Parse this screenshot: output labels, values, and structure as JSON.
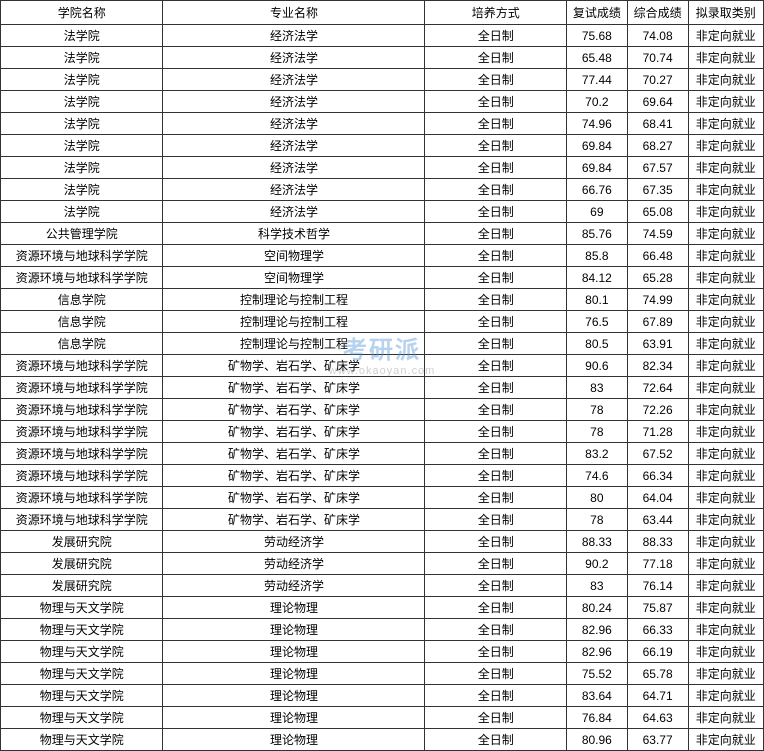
{
  "table": {
    "columns": [
      {
        "key": "school",
        "label": "学院名称",
        "class": "col-school"
      },
      {
        "key": "major",
        "label": "专业名称",
        "class": "col-major"
      },
      {
        "key": "mode",
        "label": "培养方式",
        "class": "col-mode"
      },
      {
        "key": "score1",
        "label": "复试成绩",
        "class": "col-score1"
      },
      {
        "key": "score2",
        "label": "综合成绩",
        "class": "col-score2"
      },
      {
        "key": "type",
        "label": "拟录取类别",
        "class": "col-type"
      }
    ],
    "rows": [
      [
        "法学院",
        "经济法学",
        "全日制",
        "75.68",
        "74.08",
        "非定向就业"
      ],
      [
        "法学院",
        "经济法学",
        "全日制",
        "65.48",
        "70.74",
        "非定向就业"
      ],
      [
        "法学院",
        "经济法学",
        "全日制",
        "77.44",
        "70.27",
        "非定向就业"
      ],
      [
        "法学院",
        "经济法学",
        "全日制",
        "70.2",
        "69.64",
        "非定向就业"
      ],
      [
        "法学院",
        "经济法学",
        "全日制",
        "74.96",
        "68.41",
        "非定向就业"
      ],
      [
        "法学院",
        "经济法学",
        "全日制",
        "69.84",
        "68.27",
        "非定向就业"
      ],
      [
        "法学院",
        "经济法学",
        "全日制",
        "69.84",
        "67.57",
        "非定向就业"
      ],
      [
        "法学院",
        "经济法学",
        "全日制",
        "66.76",
        "67.35",
        "非定向就业"
      ],
      [
        "法学院",
        "经济法学",
        "全日制",
        "69",
        "65.08",
        "非定向就业"
      ],
      [
        "公共管理学院",
        "科学技术哲学",
        "全日制",
        "85.76",
        "74.59",
        "非定向就业"
      ],
      [
        "资源环境与地球科学学院",
        "空间物理学",
        "全日制",
        "85.8",
        "66.48",
        "非定向就业"
      ],
      [
        "资源环境与地球科学学院",
        "空间物理学",
        "全日制",
        "84.12",
        "65.28",
        "非定向就业"
      ],
      [
        "信息学院",
        "控制理论与控制工程",
        "全日制",
        "80.1",
        "74.99",
        "非定向就业"
      ],
      [
        "信息学院",
        "控制理论与控制工程",
        "全日制",
        "76.5",
        "67.89",
        "非定向就业"
      ],
      [
        "信息学院",
        "控制理论与控制工程",
        "全日制",
        "80.5",
        "63.91",
        "非定向就业"
      ],
      [
        "资源环境与地球科学学院",
        "矿物学、岩石学、矿床学",
        "全日制",
        "90.6",
        "82.34",
        "非定向就业"
      ],
      [
        "资源环境与地球科学学院",
        "矿物学、岩石学、矿床学",
        "全日制",
        "83",
        "72.64",
        "非定向就业"
      ],
      [
        "资源环境与地球科学学院",
        "矿物学、岩石学、矿床学",
        "全日制",
        "78",
        "72.26",
        "非定向就业"
      ],
      [
        "资源环境与地球科学学院",
        "矿物学、岩石学、矿床学",
        "全日制",
        "78",
        "71.28",
        "非定向就业"
      ],
      [
        "资源环境与地球科学学院",
        "矿物学、岩石学、矿床学",
        "全日制",
        "83.2",
        "67.52",
        "非定向就业"
      ],
      [
        "资源环境与地球科学学院",
        "矿物学、岩石学、矿床学",
        "全日制",
        "74.6",
        "66.34",
        "非定向就业"
      ],
      [
        "资源环境与地球科学学院",
        "矿物学、岩石学、矿床学",
        "全日制",
        "80",
        "64.04",
        "非定向就业"
      ],
      [
        "资源环境与地球科学学院",
        "矿物学、岩石学、矿床学",
        "全日制",
        "78",
        "63.44",
        "非定向就业"
      ],
      [
        "发展研究院",
        "劳动经济学",
        "全日制",
        "88.33",
        "88.33",
        "非定向就业"
      ],
      [
        "发展研究院",
        "劳动经济学",
        "全日制",
        "90.2",
        "77.18",
        "非定向就业"
      ],
      [
        "发展研究院",
        "劳动经济学",
        "全日制",
        "83",
        "76.14",
        "非定向就业"
      ],
      [
        "物理与天文学院",
        "理论物理",
        "全日制",
        "80.24",
        "75.87",
        "非定向就业"
      ],
      [
        "物理与天文学院",
        "理论物理",
        "全日制",
        "82.96",
        "66.33",
        "非定向就业"
      ],
      [
        "物理与天文学院",
        "理论物理",
        "全日制",
        "82.96",
        "66.19",
        "非定向就业"
      ],
      [
        "物理与天文学院",
        "理论物理",
        "全日制",
        "75.52",
        "65.78",
        "非定向就业"
      ],
      [
        "物理与天文学院",
        "理论物理",
        "全日制",
        "83.64",
        "64.71",
        "非定向就业"
      ],
      [
        "物理与天文学院",
        "理论物理",
        "全日制",
        "76.84",
        "64.63",
        "非定向就业"
      ],
      [
        "物理与天文学院",
        "理论物理",
        "全日制",
        "80.96",
        "63.77",
        "非定向就业"
      ]
    ],
    "border_color": "#333333",
    "background_color": "#ffffff",
    "text_color": "#000000",
    "font_size": 12
  },
  "watermark": {
    "main_text": "考研派",
    "sub_text": "www.okaoyan.com",
    "main_color": "#4a90d9",
    "sub_color": "#888888"
  }
}
